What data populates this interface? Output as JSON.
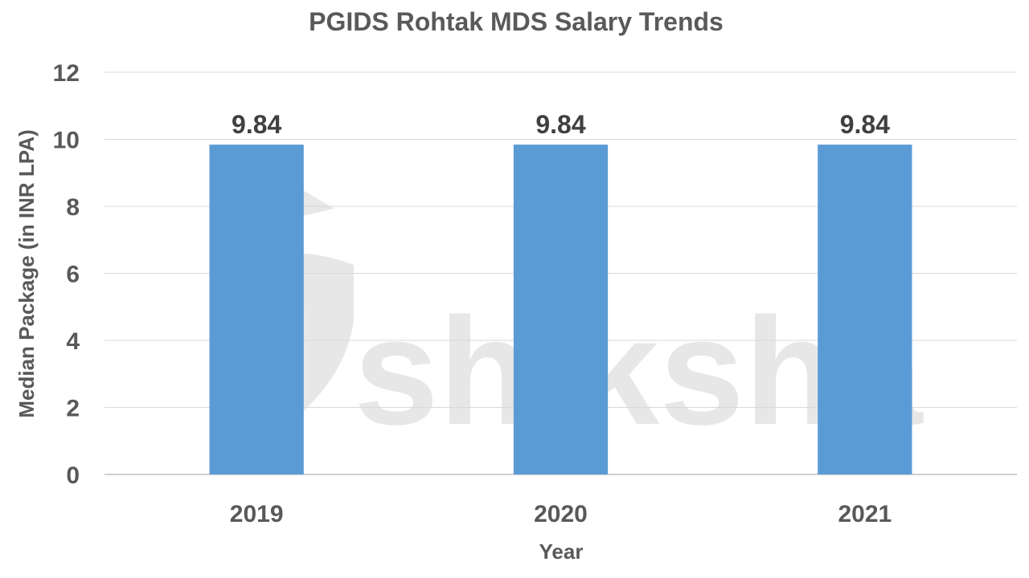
{
  "watermark": {
    "text": "shiksha"
  },
  "chart_data": {
    "type": "bar",
    "title": "PGIDS Rohtak MDS Salary Trends",
    "xlabel": "Year",
    "ylabel": "Median Package (in INR LPA)",
    "categories": [
      "2019",
      "2020",
      "2021"
    ],
    "series": [
      {
        "values": [
          9.84,
          9.84,
          9.84
        ],
        "data_labels": [
          "9.84",
          "9.84",
          "9.84"
        ],
        "color": "#5b9bd5"
      }
    ],
    "ylim": [
      0,
      12
    ],
    "yticks": [
      0,
      2,
      4,
      6,
      8,
      10,
      12
    ],
    "grid": true,
    "legend": "none"
  }
}
